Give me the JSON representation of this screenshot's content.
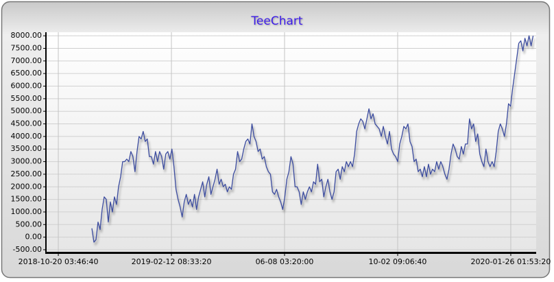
{
  "chart_data": {
    "type": "line",
    "title": "TeeChart",
    "x": [
      43427.5,
      43429.6,
      43431.7,
      43433.8,
      43435.9,
      43438,
      43440.1,
      43442.2,
      43444.3,
      43446.4,
      43448.5,
      43450.6,
      43452.7,
      43454.8,
      43456.9,
      43459,
      43461.1,
      43463.2,
      43465.3,
      43467.4,
      43469.5,
      43471.6,
      43473.7,
      43475.8,
      43477.9,
      43480,
      43482.1,
      43484.2,
      43486.3,
      43488.4,
      43490.5,
      43492.6,
      43494.7,
      43496.8,
      43498.9,
      43501,
      43503.1,
      43505.2,
      43507.3,
      43509.4,
      43511.5,
      43513.6,
      43515.7,
      43517.8,
      43519.9,
      43522,
      43524.1,
      43526.2,
      43528.3,
      43530.4,
      43532.5,
      43534.6,
      43536.7,
      43538.8,
      43540.9,
      43543,
      43545.1,
      43547.2,
      43549.3,
      43551.4,
      43553.5,
      43555.6,
      43557.7,
      43559.8,
      43561.9,
      43564,
      43566.1,
      43568.2,
      43570.3,
      43572.4,
      43574.5,
      43576.6,
      43578.7,
      43580.8,
      43582.9,
      43585,
      43587.1,
      43589.2,
      43591.3,
      43593.4,
      43595.5,
      43597.6,
      43599.7,
      43601.8,
      43603.9,
      43606,
      43608.1,
      43610.2,
      43612.3,
      43614.4,
      43616.5,
      43618.6,
      43620.7,
      43622.8,
      43624.9,
      43627,
      43629.1,
      43631.2,
      43633.3,
      43635.4,
      43637.5,
      43639.6,
      43641.7,
      43643.8,
      43645.9,
      43648,
      43650.1,
      43652.2,
      43654.3,
      43656.4,
      43658.5,
      43660.6,
      43662.7,
      43664.8,
      43666.9,
      43669,
      43671.1,
      43673.2,
      43675.3,
      43677.4,
      43679.5,
      43681.6,
      43683.7,
      43685.8,
      43687.9,
      43690,
      43692.1,
      43694.2,
      43696.3,
      43698.4,
      43700.5,
      43702.6,
      43704.7,
      43706.8,
      43708.9,
      43711,
      43713.1,
      43715.2,
      43717.3,
      43719.4,
      43721.5,
      43723.6,
      43725.7,
      43727.8,
      43729.9,
      43732,
      43734.1,
      43736.2,
      43738.3,
      43740.4,
      43742.5,
      43744.6,
      43746.7,
      43748.8,
      43750.9,
      43753,
      43755.1,
      43757.2,
      43759.3,
      43761.4,
      43763.5,
      43765.6,
      43767.7,
      43769.8,
      43771.9,
      43774,
      43776.1,
      43778.2,
      43780.3,
      43782.4,
      43784.5,
      43786.6,
      43788.7,
      43790.8,
      43792.9,
      43795,
      43797.1,
      43799.2,
      43801.3,
      43803.4,
      43805.5,
      43807.6,
      43809.7,
      43811.8,
      43813.9,
      43816,
      43818.1,
      43820.2,
      43822.3,
      43824.4,
      43826.5,
      43828.6,
      43830.7,
      43832.8,
      43834.9,
      43837,
      43839.1,
      43841.2,
      43843.3,
      43845.4,
      43847.5,
      43849.6,
      43851.7,
      43853.8,
      43855.9,
      43858,
      43860.1,
      43862.2,
      43864.3,
      43866.4,
      43868.5,
      43870.6,
      43872.7,
      43874.8,
      43876.9,
      43879
    ],
    "series": [
      {
        "color": "#3b4b9e",
        "values": [
          350,
          -200,
          -100,
          600,
          300,
          1100,
          1600,
          1500,
          600,
          1400,
          1000,
          1600,
          1300,
          2000,
          2400,
          3000,
          3000,
          3100,
          3000,
          3400,
          3200,
          2600,
          3400,
          4000,
          3900,
          4200,
          3800,
          3900,
          3200,
          3200,
          2900,
          3400,
          3000,
          3400,
          3200,
          2700,
          3300,
          3400,
          3100,
          3500,
          2800,
          1900,
          1500,
          1200,
          800,
          1400,
          1700,
          1300,
          1500,
          1200,
          1700,
          1100,
          1600,
          1900,
          2200,
          1600,
          2100,
          2400,
          1700,
          2000,
          2300,
          2700,
          2100,
          2300,
          2000,
          2100,
          1800,
          2000,
          1900,
          2500,
          2700,
          3400,
          3000,
          3100,
          3500,
          3800,
          3900,
          3700,
          4500,
          4000,
          3800,
          3400,
          3500,
          3100,
          3200,
          2800,
          2600,
          2500,
          1800,
          1700,
          1900,
          1600,
          1400,
          1100,
          1600,
          2300,
          2600,
          3200,
          2900,
          2000,
          2000,
          1800,
          1300,
          1800,
          1500,
          1800,
          2000,
          1800,
          2200,
          2100,
          2900,
          2200,
          2300,
          1600,
          2000,
          2300,
          1800,
          1500,
          1800,
          2600,
          2700,
          2300,
          2800,
          2600,
          3000,
          2800,
          3000,
          2800,
          3300,
          4200,
          4500,
          4700,
          4600,
          4300,
          4700,
          5100,
          4700,
          4900,
          4500,
          4400,
          4300,
          4000,
          4400,
          4000,
          3700,
          4200,
          3500,
          3300,
          3200,
          3000,
          3700,
          4000,
          4400,
          4300,
          4500,
          3800,
          3600,
          3000,
          3100,
          2600,
          2700,
          2400,
          2800,
          2400,
          2900,
          2500,
          2700,
          2600,
          3000,
          2700,
          3000,
          2800,
          2500,
          2300,
          2700,
          3300,
          3700,
          3500,
          3200,
          3100,
          3600,
          3300,
          3700,
          3700,
          4700,
          4300,
          4500,
          3800,
          4100,
          3300,
          3000,
          2800,
          3500,
          3000,
          2800,
          3000,
          2800,
          3400,
          4200,
          4500,
          4300,
          4000,
          4500,
          5300,
          5200,
          5900,
          6500,
          7100,
          7700,
          7800,
          7400,
          7900,
          7600,
          8000,
          7600,
          8000
        ]
      }
    ],
    "xlim": [
      43380.5,
      43882.1
    ],
    "xticks": [
      {
        "value": 43393.157,
        "label": "2018-10-20 03:46:40"
      },
      {
        "value": 43508.898,
        "label": "2019-02-12 08:33:20"
      },
      {
        "value": 43624.639,
        "label": "06-08 03:20:00"
      },
      {
        "value": 43740.38,
        "label": "10-02 09:06:40"
      },
      {
        "value": 43856.12,
        "label": "2020-01-26 01:53:20"
      }
    ],
    "ylim": [
      -610,
      8140
    ],
    "yticks": [
      {
        "value": -500,
        "label": "-500.00"
      },
      {
        "value": 0,
        "label": "0.00"
      },
      {
        "value": 500,
        "label": "500.00"
      },
      {
        "value": 1000,
        "label": "1000.00"
      },
      {
        "value": 1500,
        "label": "1500.00"
      },
      {
        "value": 2000,
        "label": "2000.00"
      },
      {
        "value": 2500,
        "label": "2500.00"
      },
      {
        "value": 3000,
        "label": "3000.00"
      },
      {
        "value": 3500,
        "label": "3500.00"
      },
      {
        "value": 4000,
        "label": "4000.00"
      },
      {
        "value": 4500,
        "label": "4500.00"
      },
      {
        "value": 5000,
        "label": "5000.00"
      },
      {
        "value": 5500,
        "label": "5500.00"
      },
      {
        "value": 6000,
        "label": "6000.00"
      },
      {
        "value": 6500,
        "label": "6500.00"
      },
      {
        "value": 7000,
        "label": "7000.00"
      },
      {
        "value": 7500,
        "label": "7500.00"
      },
      {
        "value": 8000,
        "label": "8000.00"
      }
    ],
    "grid": true
  }
}
